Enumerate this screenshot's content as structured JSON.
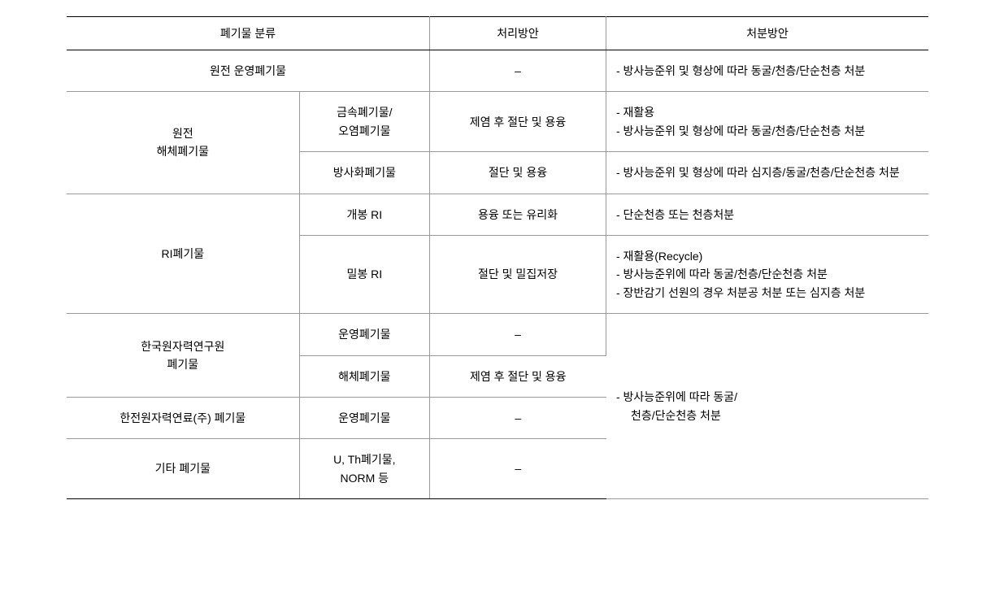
{
  "headers": {
    "col1": "폐기물 분류",
    "col2": "처리방안",
    "col3": "처분방안"
  },
  "rows": {
    "r1": {
      "a": "원전 운영폐기물",
      "c": "–",
      "d": "- 방사능준위 및 형상에 따라 동굴/천층/단순천층 처분"
    },
    "r2": {
      "a": "원전\n해체폐기물",
      "b": "금속폐기물/\n오염폐기물",
      "c": "제염 후 절단 및 용융",
      "d1": "- 재활용",
      "d2": "- 방사능준위 및 형상에 따라 동굴/천층/단순천층 처분"
    },
    "r3": {
      "b": "방사화폐기물",
      "c": "절단 및 용융",
      "d": "- 방사능준위 및 형상에 따라 심지층/동굴/천층/단순천층 처분"
    },
    "r4": {
      "a": "RI폐기물",
      "b": "개봉 RI",
      "c": "용융 또는 유리화",
      "d": "- 단순천층 또는 천층처분"
    },
    "r5": {
      "b": "밀봉 RI",
      "c": "절단 및 밀집저장",
      "d1": "- 재활용(Recycle)",
      "d2": "- 방사능준위에 따라 동굴/천층/단순천층 처분",
      "d3": "- 장반감기 선원의 경우 처분공 처분 또는 심지층 처분"
    },
    "r6": {
      "a": "한국원자력연구원\n폐기물",
      "b": "운영폐기물",
      "c": "–",
      "d": "- 방사능준위에 따라 동굴/\n  천층/단순천층 처분"
    },
    "r7": {
      "b": "해체폐기물",
      "c": "제염 후 절단 및 용융"
    },
    "r8": {
      "a": "한전원자력연료(주) 폐기물",
      "b": "운영폐기물",
      "c": "–"
    },
    "r9": {
      "a": "기타 폐기물",
      "b": "U, Th폐기물,\nNORM 등",
      "c": "–"
    }
  },
  "colors": {
    "border_main": "#000000",
    "border_inner": "#999999",
    "background": "#ffffff",
    "text": "#000000"
  },
  "typography": {
    "font_size": 14,
    "line_height": 1.6
  }
}
